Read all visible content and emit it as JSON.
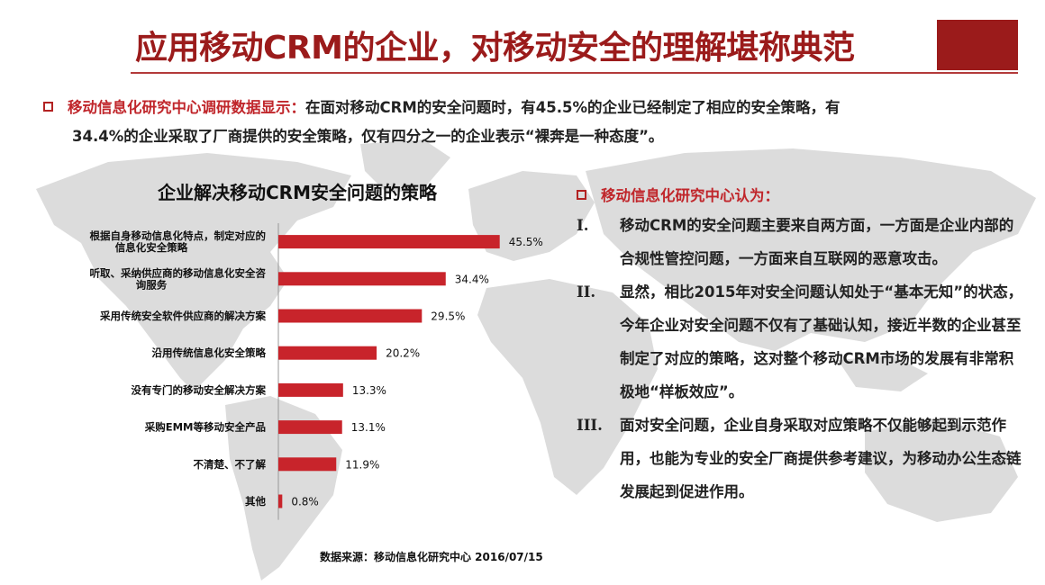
{
  "title": "应用移动CRM的企业，对移动安全的理解堪称典范",
  "intro": {
    "lead": "移动信息化研究中心调研数据显示：",
    "text_line1": "在面对移动CRM的安全问题时，有45.5%的企业已经制定了相应的安全策略，有",
    "text_line2": "34.4%的企业采取了厂商提供的安全策略，仅有四分之一的企业表示“裸奔是一种态度”。"
  },
  "chart_data": {
    "type": "bar",
    "orientation": "horizontal",
    "title": "企业解决移动CRM安全问题的策略",
    "categories": [
      "根据自身移动信息化特点，制定对应的信息化安全策略",
      "听取、采纳供应商的移动信息化安全咨询服务",
      "采用传统安全软件供应商的解决方案",
      "沿用传统信息化安全策略",
      "没有专门的移动安全解决方案",
      "采购EMM等移动安全产品",
      "不清楚、不了解",
      "其他"
    ],
    "values": [
      45.5,
      34.4,
      29.5,
      20.2,
      13.3,
      13.1,
      11.9,
      0.8
    ],
    "value_labels": [
      "45.5%",
      "34.4%",
      "29.5%",
      "20.2%",
      "13.3%",
      "13.1%",
      "11.9%",
      "0.8%"
    ],
    "unit": "%",
    "xlim": [
      0,
      50
    ],
    "bar_color": "#c8242b",
    "grid": false
  },
  "source": "数据来源：移动信息化研究中心 2016/07/15",
  "right": {
    "heading": "移动信息化研究中心认为：",
    "items": [
      {
        "num": "I.",
        "text": "移动CRM的安全问题主要来自两方面，一方面是企业内部的合规性管控问题，一方面来自互联网的恶意攻击。"
      },
      {
        "num": "II.",
        "text": "显然，相比2015年对安全问题认知处于“基本无知”的状态，今年企业对安全问题不仅有了基础认知，接近半数的企业甚至制定了对应的策略，这对整个移动CRM市场的发展有非常积极地“样板效应”。"
      },
      {
        "num": "III.",
        "text": "面对安全问题，企业自身采取对应策略不仅能够起到示范作用，也能为专业的安全厂商提供参考建议，为移动办公生态链发展起到促进作用。"
      }
    ]
  },
  "colors": {
    "accent": "#9b1b1b",
    "bar": "#c8242b",
    "lead_text": "#c0262b"
  }
}
